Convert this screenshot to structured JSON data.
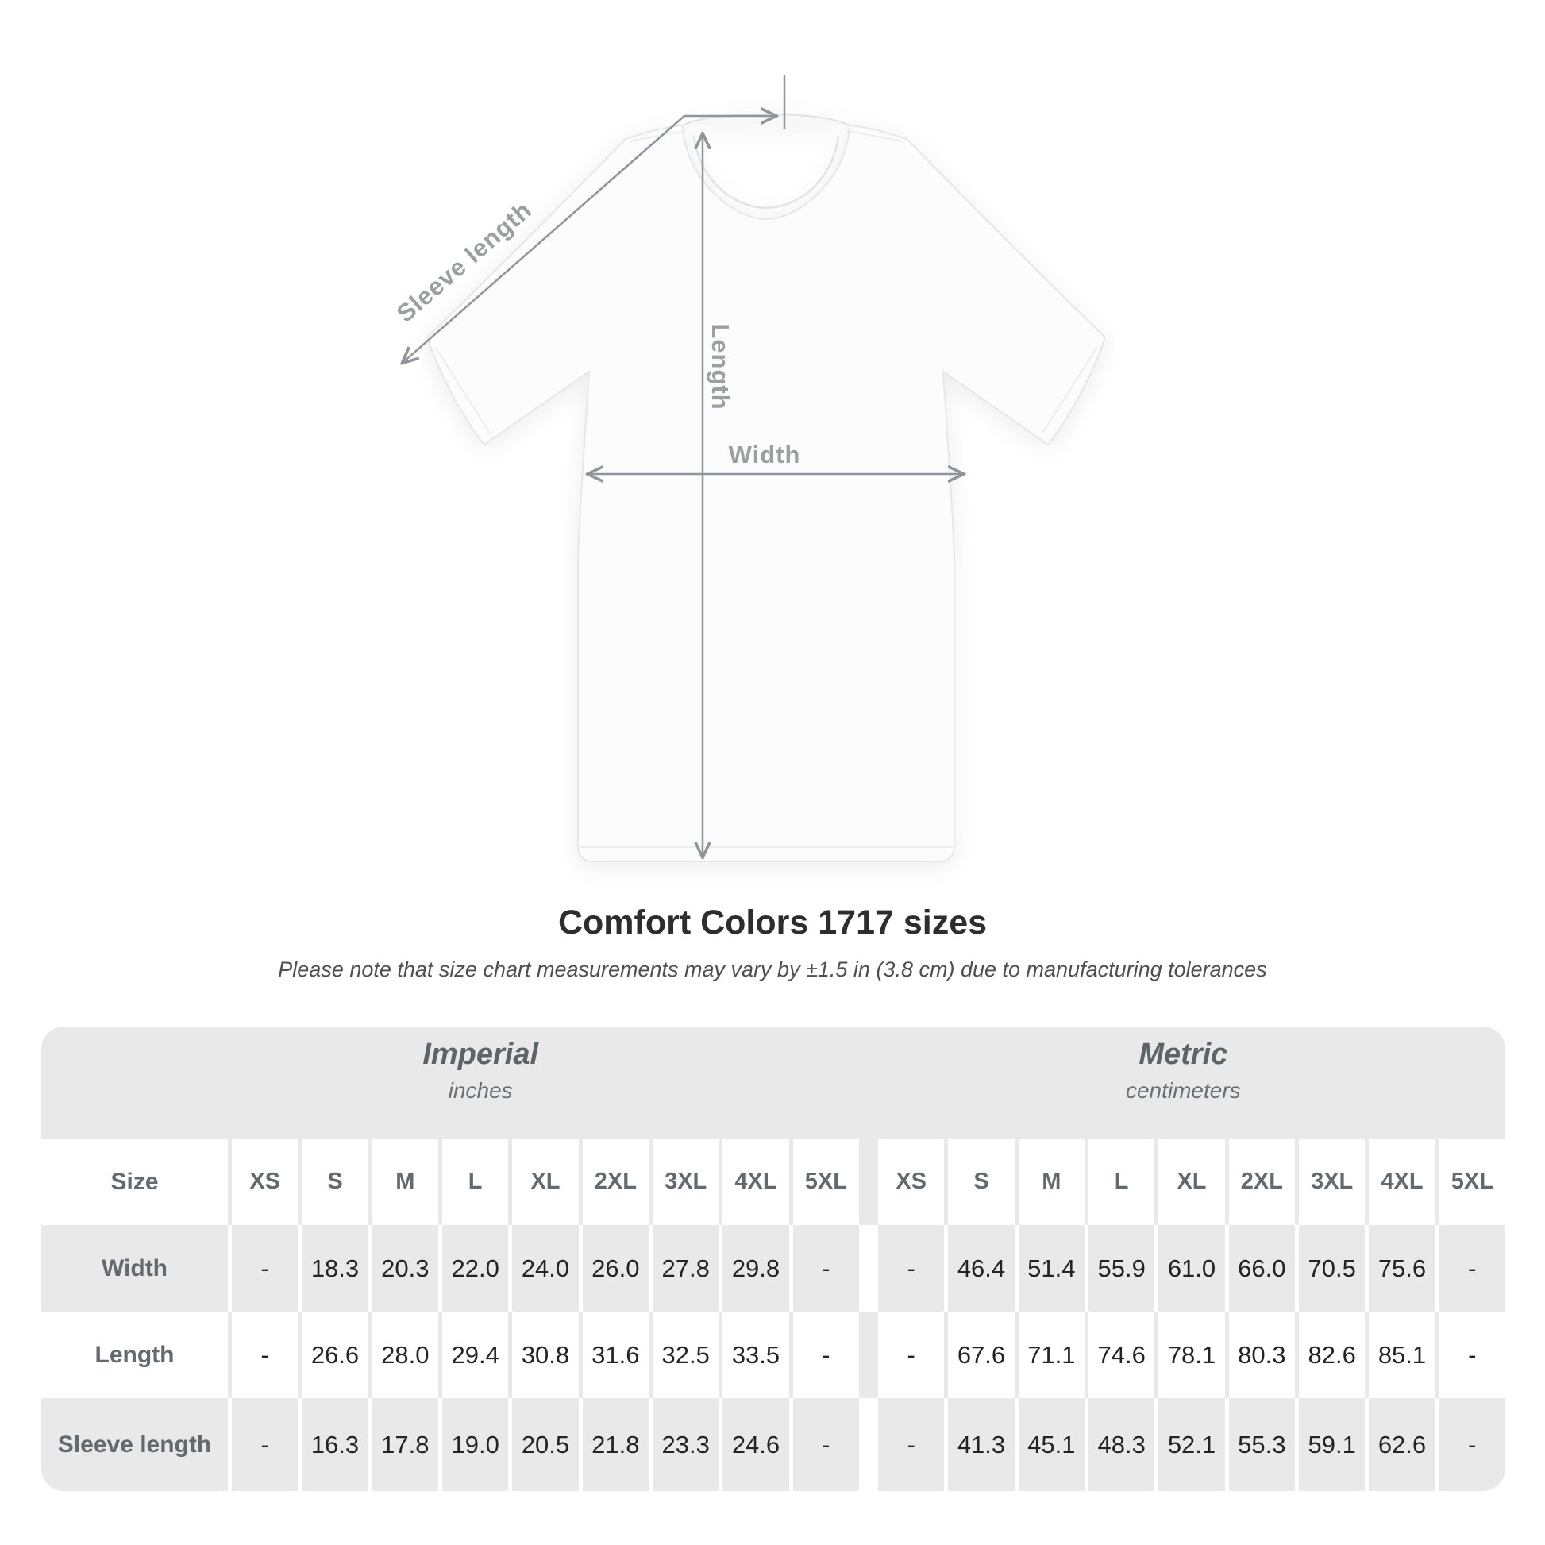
{
  "diagram_labels": {
    "sleeve": "Sleeve length",
    "length": "Length",
    "width": "Width"
  },
  "title": "Comfort Colors 1717 sizes",
  "subtitle": "Please note that size chart measurements may vary by ±1.5 in (3.8 cm) due to manufacturing tolerances",
  "table": {
    "size_header": "Size",
    "groups": [
      {
        "name": "Imperial",
        "unit": "inches"
      },
      {
        "name": "Metric",
        "unit": "centimeters"
      }
    ],
    "sizes": [
      "XS",
      "S",
      "M",
      "L",
      "XL",
      "2XL",
      "3XL",
      "4XL",
      "5XL"
    ],
    "rows": [
      {
        "label": "Width",
        "imperial": [
          "-",
          "18.3",
          "20.3",
          "22.0",
          "24.0",
          "26.0",
          "27.8",
          "29.8",
          "-"
        ],
        "metric": [
          "-",
          "46.4",
          "51.4",
          "55.9",
          "61.0",
          "66.0",
          "70.5",
          "75.6",
          "-"
        ]
      },
      {
        "label": "Length",
        "imperial": [
          "-",
          "26.6",
          "28.0",
          "29.4",
          "30.8",
          "31.6",
          "32.5",
          "33.5",
          "-"
        ],
        "metric": [
          "-",
          "67.6",
          "71.1",
          "74.6",
          "78.1",
          "80.3",
          "82.6",
          "85.1",
          "-"
        ]
      },
      {
        "label": "Sleeve length",
        "imperial": [
          "-",
          "16.3",
          "17.8",
          "19.0",
          "20.5",
          "21.8",
          "23.3",
          "24.6",
          "-"
        ],
        "metric": [
          "-",
          "41.3",
          "45.1",
          "48.3",
          "52.1",
          "55.3",
          "59.1",
          "62.6",
          "-"
        ]
      }
    ]
  },
  "colors": {
    "band_gray": "#e9e9e9",
    "label_slate": "#636a6f",
    "value_dark": "#242424",
    "diagram_gray": "#9b9fa3",
    "arrow_gray": "#8f959a",
    "title_dark": "#2d2d2d"
  },
  "chart_data": {
    "type": "table",
    "title": "Comfort Colors 1717 sizes",
    "note": "Please note that size chart measurements may vary by ±1.5 in (3.8 cm) due to manufacturing tolerances",
    "column_groups": [
      "Imperial (inches)",
      "Metric (centimeters)"
    ],
    "columns": [
      "XS",
      "S",
      "M",
      "L",
      "XL",
      "2XL",
      "3XL",
      "4XL",
      "5XL"
    ],
    "rows": [
      {
        "label": "Width",
        "imperial": [
          null,
          18.3,
          20.3,
          22.0,
          24.0,
          26.0,
          27.8,
          29.8,
          null
        ],
        "metric": [
          null,
          46.4,
          51.4,
          55.9,
          61.0,
          66.0,
          70.5,
          75.6,
          null
        ]
      },
      {
        "label": "Length",
        "imperial": [
          null,
          26.6,
          28.0,
          29.4,
          30.8,
          31.6,
          32.5,
          33.5,
          null
        ],
        "metric": [
          null,
          67.6,
          71.1,
          74.6,
          78.1,
          80.3,
          82.6,
          85.1,
          null
        ]
      },
      {
        "label": "Sleeve length",
        "imperial": [
          null,
          16.3,
          17.8,
          19.0,
          20.5,
          21.8,
          23.3,
          24.6,
          null
        ],
        "metric": [
          null,
          41.3,
          45.1,
          48.3,
          52.1,
          55.3,
          59.1,
          62.6,
          null
        ]
      }
    ]
  }
}
